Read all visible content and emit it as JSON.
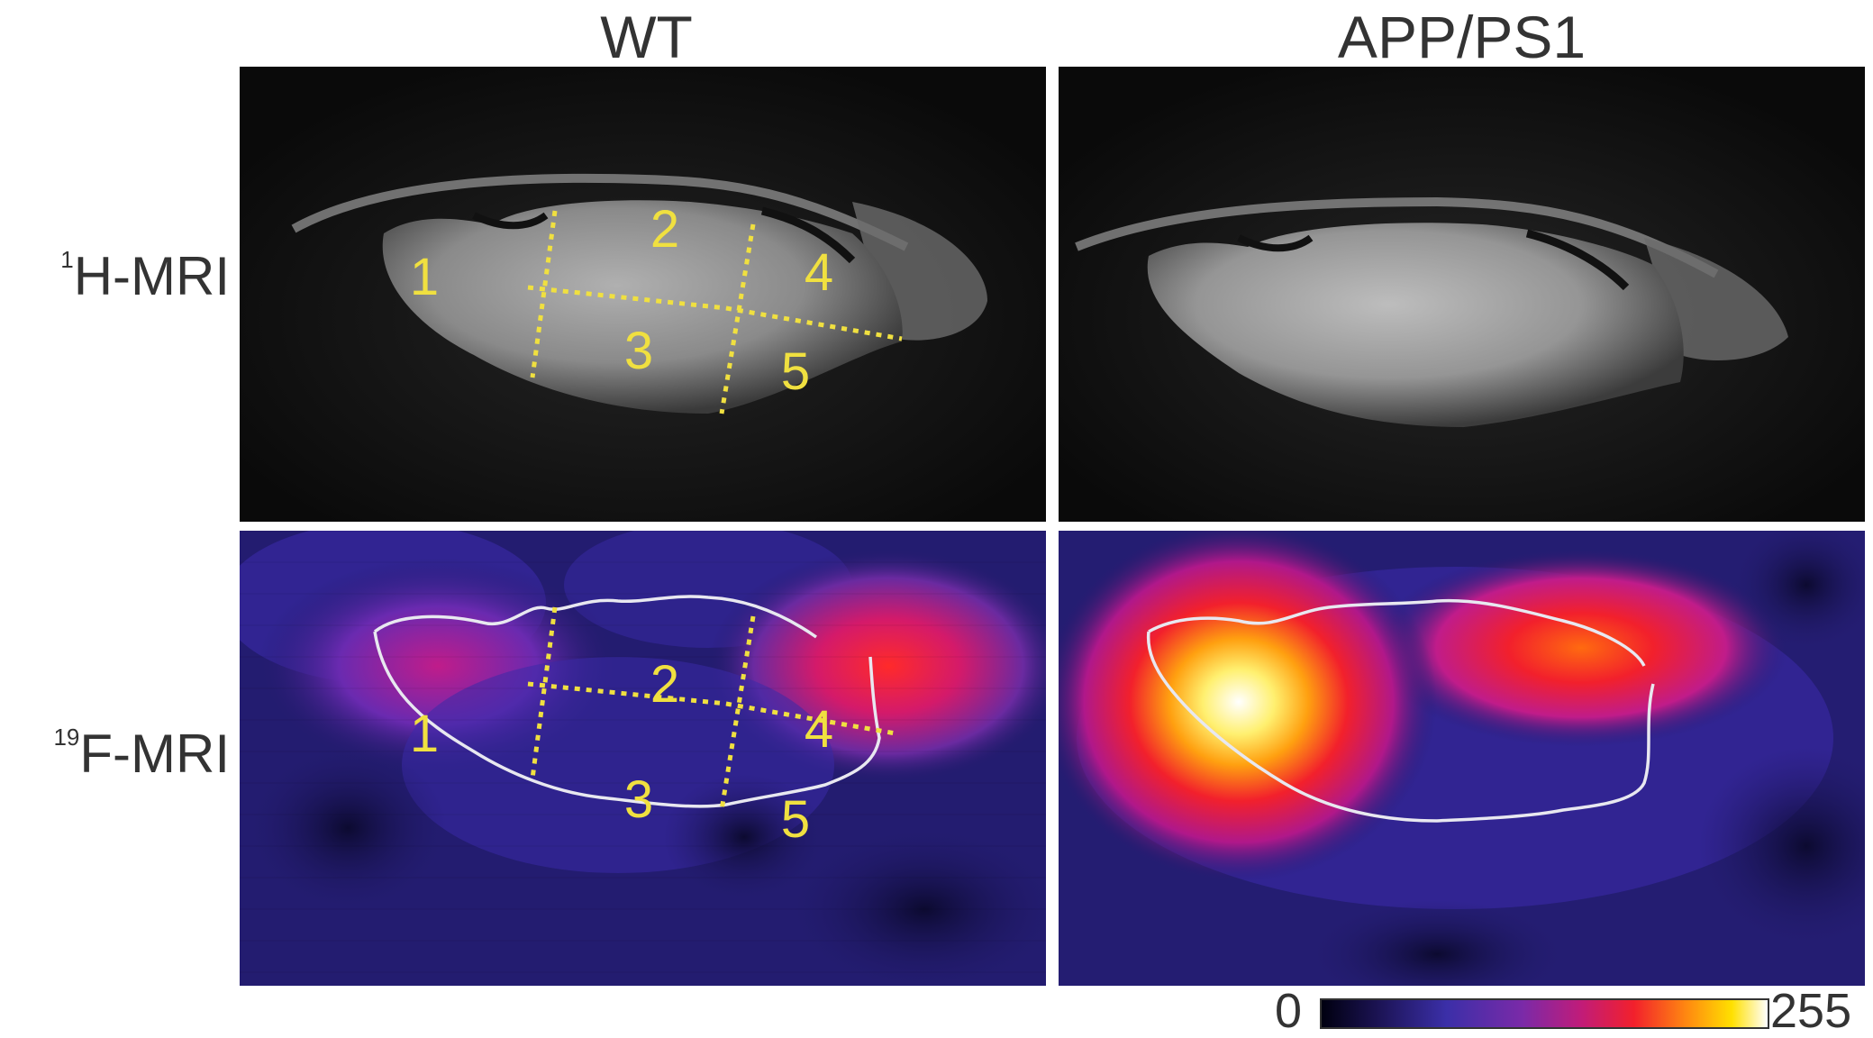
{
  "figure": {
    "columns": [
      {
        "title": "WT"
      },
      {
        "title": "APP/PS1"
      }
    ],
    "rows": [
      {
        "label_sup": "1",
        "label_main": "H-MRI"
      },
      {
        "label_sup": "19",
        "label_main": "F-MRI"
      }
    ],
    "regions": [
      "1",
      "2",
      "3",
      "4",
      "5"
    ],
    "colorbar": {
      "min": "0",
      "max": "255"
    },
    "colors": {
      "region_lines": "#f0e040",
      "outline": "#ffffff",
      "background_19F": "#221a6a"
    }
  }
}
